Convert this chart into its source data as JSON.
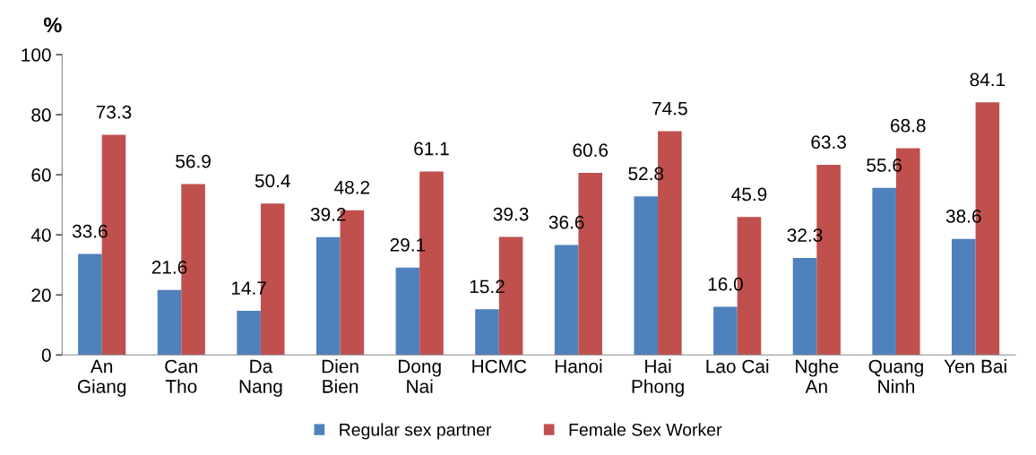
{
  "chart_data": {
    "type": "bar",
    "ylabel": "%",
    "categories": [
      "An\nGiang",
      "Can\nTho",
      "Da\nNang",
      "Dien\nBien",
      "Dong\nNai",
      "HCMC",
      "Hanoi",
      "Hai\nPhong",
      "Lao Cai",
      "Nghe\nAn",
      "Quang\nNinh",
      "Yen Bai"
    ],
    "series": [
      {
        "name": "Regular sex partner",
        "color": "#4f81bd",
        "values": [
          33.6,
          21.6,
          14.7,
          39.2,
          29.1,
          15.2,
          36.6,
          52.8,
          16.0,
          32.3,
          55.6,
          38.6
        ],
        "value_labels": [
          "33.6",
          "21.6",
          "14.7",
          "39.2",
          "29.1",
          "15.2",
          "36.6",
          "52.8",
          "16.0",
          "32.3",
          "55.6",
          "38.6"
        ]
      },
      {
        "name": "Female Sex Worker",
        "color": "#c0504d",
        "values": [
          73.3,
          56.9,
          50.4,
          48.2,
          61.1,
          39.3,
          60.6,
          74.5,
          45.9,
          63.3,
          68.8,
          84.1
        ],
        "value_labels": [
          "73.3",
          "56.9",
          "50.4",
          "48.2",
          "61.1",
          "39.3",
          "60.6",
          "74.5",
          "45.9",
          "63.3",
          "68.8",
          "84.1"
        ]
      }
    ],
    "ylim": [
      0,
      100
    ],
    "yticks": [
      0,
      20,
      40,
      60,
      80,
      100
    ],
    "grid": false,
    "legend": "bottom"
  }
}
